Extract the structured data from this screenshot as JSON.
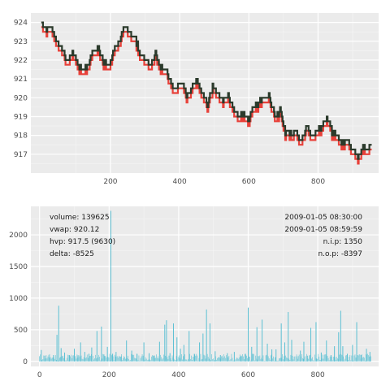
{
  "chart_data": [
    {
      "type": "line",
      "title": "",
      "xlabel": "",
      "ylabel": "",
      "xlim": [
        -30,
        975
      ],
      "ylim": [
        916.0,
        924.5
      ],
      "x_ticks": [
        200,
        400,
        600,
        800
      ],
      "y_ticks": [
        917,
        918,
        919,
        920,
        921,
        922,
        923,
        924
      ],
      "grid": true,
      "legend": "none",
      "colors": {
        "panel": "#ebebeb",
        "grid": "#ffffff",
        "ask": "#2b3a2b",
        "bid": "#e8413a",
        "tick": "#4d4d4d"
      },
      "series": [
        {
          "x": [
            0,
            15,
            30,
            45,
            60,
            75,
            90,
            105,
            120,
            135,
            150,
            165,
            180,
            195,
            210,
            225,
            240,
            255,
            270,
            285,
            300,
            315,
            330,
            345,
            360,
            375,
            390,
            405,
            420,
            435,
            450,
            465,
            480,
            495,
            510,
            525,
            540,
            555,
            570,
            585,
            600,
            615,
            630,
            645,
            660,
            675,
            690,
            705,
            720,
            735,
            750,
            765,
            780,
            795,
            810,
            825,
            840,
            855,
            870,
            885,
            900,
            915,
            930,
            945,
            955
          ],
          "y": [
            924.0,
            923.7,
            923.8,
            923.0,
            922.6,
            921.9,
            922.5,
            921.8,
            921.4,
            921.8,
            922.5,
            922.7,
            921.9,
            921.6,
            922.6,
            923.0,
            923.8,
            923.5,
            923.2,
            922.4,
            922.1,
            921.7,
            922.4,
            921.6,
            921.5,
            920.8,
            920.5,
            920.9,
            920.1,
            920.5,
            920.9,
            920.2,
            919.6,
            920.6,
            920.2,
            919.9,
            920.1,
            919.5,
            919.0,
            919.2,
            918.9,
            919.6,
            919.7,
            920.1,
            920.0,
            919.0,
            919.3,
            918.2,
            918.1,
            918.2,
            917.7,
            918.5,
            918.0,
            918.2,
            918.5,
            919.0,
            918.2,
            917.9,
            917.6,
            917.8,
            917.3,
            916.9,
            917.5,
            917.2,
            917.6
          ]
        }
      ]
    },
    {
      "type": "bar",
      "title": "",
      "xlabel": "",
      "ylabel": "",
      "xlim": [
        -25,
        975
      ],
      "ylim": [
        -80,
        2450
      ],
      "x_ticks": [
        0,
        200,
        400,
        600,
        800
      ],
      "y_ticks": [
        0,
        500,
        1000,
        1500,
        2000
      ],
      "grid": true,
      "legend": "none",
      "colors": {
        "panel": "#ebebeb",
        "grid": "#ffffff",
        "bar": "#5bc0d3",
        "tick": "#4d4d4d"
      },
      "series": [
        {
          "x": [
            5,
            15,
            28,
            40,
            50,
            55,
            62,
            72,
            85,
            100,
            110,
            118,
            130,
            142,
            150,
            165,
            178,
            185,
            195,
            205,
            210,
            220,
            235,
            250,
            265,
            280,
            300,
            315,
            330,
            345,
            360,
            365,
            375,
            385,
            395,
            405,
            415,
            430,
            445,
            460,
            470,
            480,
            490,
            505,
            520,
            540,
            560,
            580,
            592,
            600,
            610,
            625,
            640,
            655,
            668,
            680,
            695,
            705,
            715,
            725,
            740,
            750,
            760,
            770,
            780,
            795,
            810,
            825,
            838,
            848,
            860,
            866,
            872,
            885,
            900,
            912,
            925,
            940,
            950
          ],
          "y": [
            180,
            90,
            60,
            100,
            420,
            880,
            210,
            140,
            100,
            200,
            60,
            300,
            150,
            120,
            220,
            480,
            550,
            110,
            230,
            2380,
            120,
            150,
            80,
            330,
            170,
            120,
            300,
            130,
            90,
            310,
            580,
            650,
            130,
            600,
            380,
            200,
            260,
            480,
            120,
            300,
            440,
            820,
            600,
            160,
            100,
            130,
            150,
            90,
            120,
            850,
            230,
            540,
            660,
            280,
            190,
            190,
            600,
            300,
            780,
            340,
            80,
            170,
            310,
            90,
            530,
            620,
            140,
            330,
            100,
            240,
            460,
            800,
            240,
            120,
            260,
            620,
            100,
            200,
            150
          ]
        }
      ]
    }
  ],
  "annotations": {
    "left": [
      "volume: 139625",
      "vwap: 920.12",
      "hvp: 917.5 (9630)",
      "delta: -8525"
    ],
    "right": [
      "2009-01-05 08:30:00",
      "2009-01-05 08:59:59",
      "n.i.p:  1350",
      "n.o.p:  -8397"
    ]
  }
}
